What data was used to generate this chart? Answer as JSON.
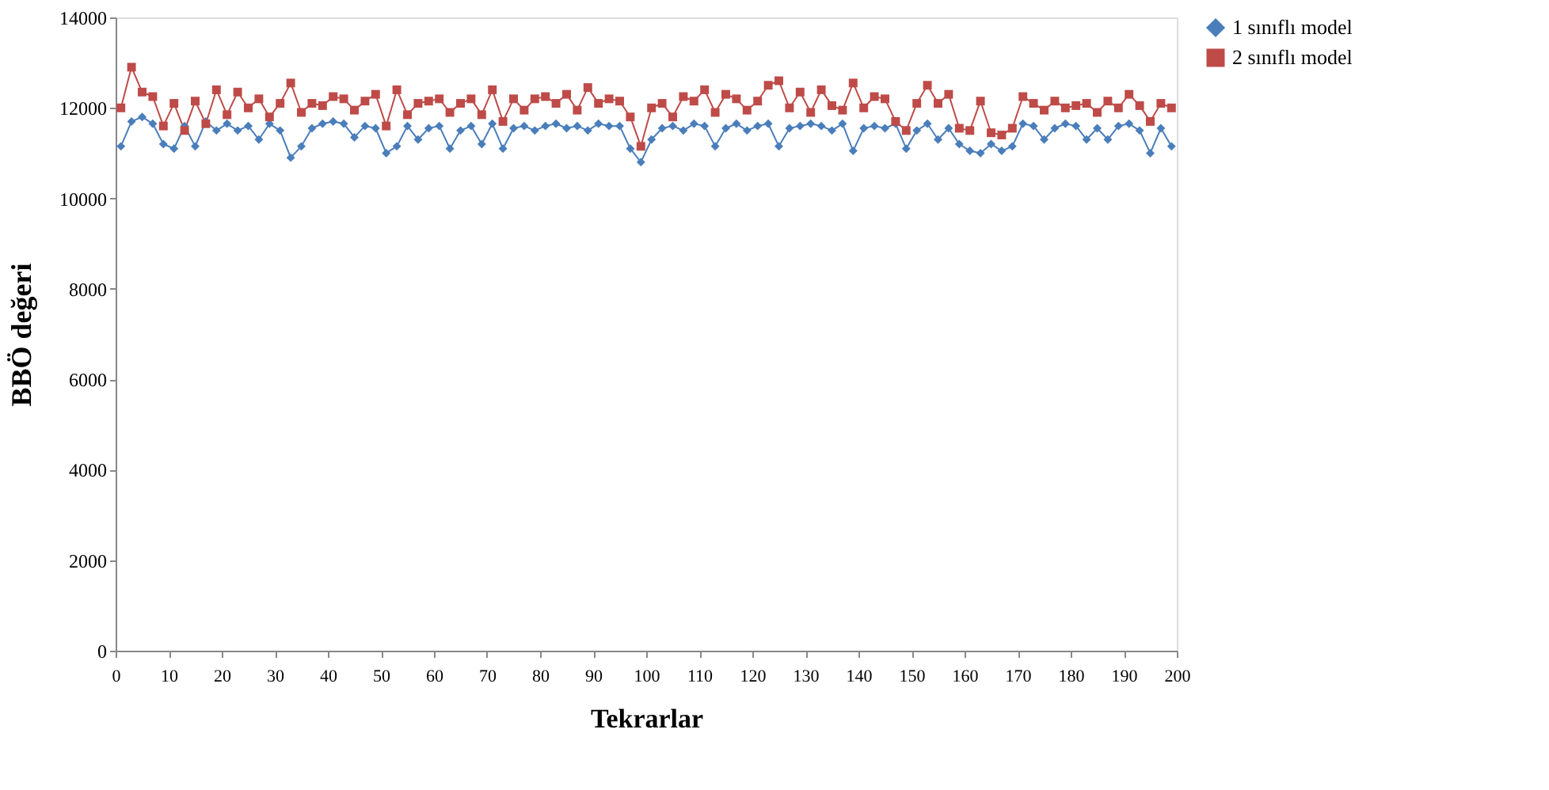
{
  "chart_data": {
    "type": "line",
    "xlabel": "Tekrarlar",
    "ylabel": "BBÖ değeri",
    "xlim": [
      0,
      200
    ],
    "ylim": [
      0,
      14000
    ],
    "xticks": [
      0,
      10,
      20,
      30,
      40,
      50,
      60,
      70,
      80,
      90,
      100,
      110,
      120,
      130,
      140,
      150,
      160,
      170,
      180,
      190,
      200
    ],
    "yticks": [
      0,
      2000,
      4000,
      6000,
      8000,
      10000,
      12000,
      14000
    ],
    "grid": false,
    "legend": "right",
    "x": [
      1,
      3,
      5,
      7,
      9,
      11,
      13,
      15,
      17,
      19,
      21,
      23,
      25,
      27,
      29,
      31,
      33,
      35,
      37,
      39,
      41,
      43,
      45,
      47,
      49,
      51,
      53,
      55,
      57,
      59,
      61,
      63,
      65,
      67,
      69,
      71,
      73,
      75,
      77,
      79,
      81,
      83,
      85,
      87,
      89,
      91,
      93,
      95,
      97,
      99,
      101,
      103,
      105,
      107,
      109,
      111,
      113,
      115,
      117,
      119,
      121,
      123,
      125,
      127,
      129,
      131,
      133,
      135,
      137,
      139,
      141,
      143,
      145,
      147,
      149,
      151,
      153,
      155,
      157,
      159,
      161,
      163,
      165,
      167,
      169,
      171,
      173,
      175,
      177,
      179,
      181,
      183,
      185,
      187,
      189,
      191,
      193,
      195,
      197,
      199
    ],
    "series": [
      {
        "name": "1 sınıflı model",
        "color": "#4a7ebb",
        "marker": "diamond",
        "values": [
          11150,
          11700,
          11800,
          11650,
          11200,
          11100,
          11600,
          11150,
          11700,
          11500,
          11650,
          11500,
          11600,
          11300,
          11650,
          11500,
          10900,
          11150,
          11550,
          11650,
          11700,
          11650,
          11350,
          11600,
          11550,
          11000,
          11150,
          11600,
          11300,
          11550,
          11600,
          11100,
          11500,
          11600,
          11200,
          11650,
          11100,
          11550,
          11600,
          11500,
          11600,
          11650,
          11550,
          11600,
          11500,
          11650,
          11600,
          11600,
          11100,
          10800,
          11300,
          11550,
          11600,
          11500,
          11650,
          11600,
          11150,
          11550,
          11650,
          11500,
          11600,
          11650,
          11150,
          11550,
          11600,
          11650,
          11600,
          11500,
          11650,
          11050,
          11550,
          11600,
          11550,
          11650,
          11100,
          11500,
          11650,
          11300,
          11550,
          11200,
          11050,
          11000,
          11200,
          11050,
          11150,
          11650,
          11600,
          11300,
          11550,
          11650,
          11600,
          11300,
          11550,
          11300,
          11600,
          11650,
          11500,
          11000,
          11550,
          11150
        ]
      },
      {
        "name": "2 sınıflı model",
        "color": "#be4b48",
        "marker": "square",
        "values": [
          12000,
          12900,
          12350,
          12250,
          11600,
          12100,
          11500,
          12150,
          11650,
          12400,
          11850,
          12350,
          12000,
          12200,
          11800,
          12100,
          12550,
          11900,
          12100,
          12050,
          12250,
          12200,
          11950,
          12150,
          12300,
          11600,
          12400,
          11850,
          12100,
          12150,
          12200,
          11900,
          12100,
          12200,
          11850,
          12400,
          11700,
          12200,
          11950,
          12200,
          12250,
          12100,
          12300,
          11950,
          12450,
          12100,
          12200,
          12150,
          11800,
          11150,
          12000,
          12100,
          11800,
          12250,
          12150,
          12400,
          11900,
          12300,
          12200,
          11950,
          12150,
          12500,
          12600,
          12000,
          12350,
          11900,
          12400,
          12050,
          11950,
          12550,
          12000,
          12250,
          12200,
          11700,
          11500,
          12100,
          12500,
          12100,
          12300,
          11550,
          11500,
          12150,
          11450,
          11400,
          11550,
          12250,
          12100,
          11950,
          12150,
          12000,
          12050,
          12100,
          11900,
          12150,
          12000,
          12300,
          12050,
          11700,
          12100,
          12000
        ]
      }
    ]
  }
}
